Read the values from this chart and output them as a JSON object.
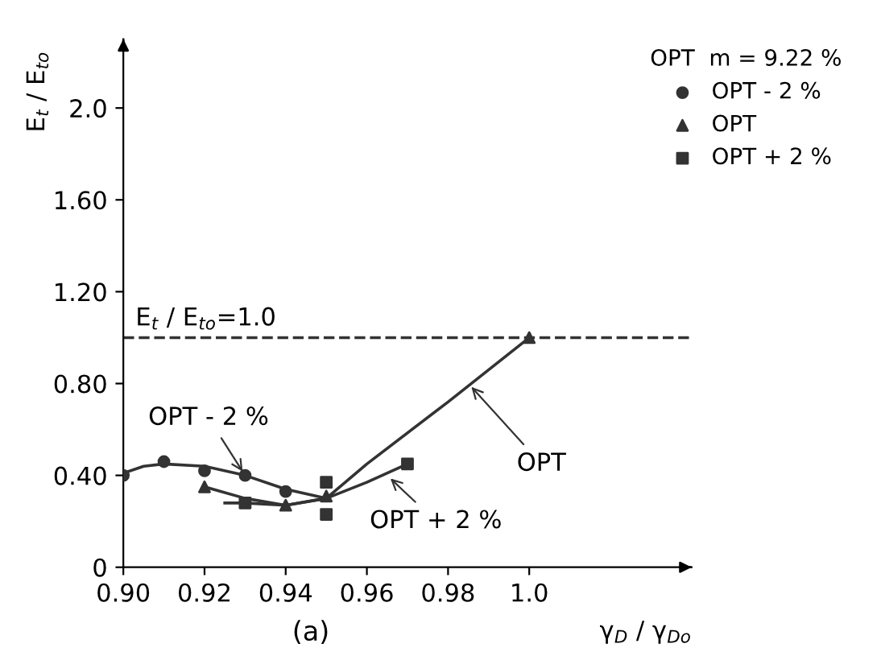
{
  "chart_data": {
    "type": "scatter",
    "xlabel": "γ$_{D}$ / γ$_{Do}$",
    "ylabel": "E$_{t}$ / E$_{to}$",
    "legend_title": "OPT  m = 9.22 %",
    "xlim": [
      0.9,
      1.04
    ],
    "ylim": [
      0,
      2.3
    ],
    "xticks": [
      {
        "value": 0.9,
        "label": "0.90"
      },
      0.92,
      0.94,
      0.96,
      0.98,
      {
        "value": 1.0,
        "label": "1.0"
      }
    ],
    "yticks": [
      0,
      {
        "value": 0.4,
        "label": "0.40"
      },
      {
        "value": 0.8,
        "label": "0.80"
      },
      {
        "value": 1.2,
        "label": "1.20"
      },
      {
        "value": 1.6,
        "label": "1.60"
      },
      {
        "value": 2.0,
        "label": "2.0"
      }
    ],
    "grid": false,
    "legend": "top right",
    "series": [
      {
        "name": "OPT - 2 %",
        "marker": "circle",
        "color": "#333333",
        "x": [
          0.9,
          0.91,
          0.92,
          0.93,
          0.94
        ],
        "values": [
          0.4,
          0.46,
          0.42,
          0.4,
          0.33
        ]
      },
      {
        "name": "OPT",
        "marker": "triangle",
        "color": "#333333",
        "x": [
          0.92,
          0.94,
          0.95,
          1.0
        ],
        "values": [
          0.35,
          0.27,
          0.31,
          1.0
        ]
      },
      {
        "name": "OPT + 2 %",
        "marker": "square",
        "color": "#333333",
        "x": [
          0.93,
          0.95,
          0.95,
          0.97
        ],
        "values": [
          0.28,
          0.37,
          0.23,
          0.45
        ]
      },
      {
        "type": "line",
        "marker": "none",
        "color": "#333333",
        "x": [
          0.9,
          0.905,
          0.91,
          0.92,
          0.93,
          0.94,
          0.95
        ],
        "values": [
          0.41,
          0.44,
          0.45,
          0.44,
          0.4,
          0.34,
          0.3
        ]
      },
      {
        "type": "line",
        "marker": "none",
        "color": "#333333",
        "x": [
          0.92,
          0.93,
          0.94,
          0.95,
          0.96,
          0.98,
          1.0
        ],
        "values": [
          0.35,
          0.3,
          0.27,
          0.3,
          0.45,
          0.72,
          1.0
        ]
      },
      {
        "type": "line",
        "marker": "none",
        "color": "#333333",
        "x": [
          0.925,
          0.93,
          0.94,
          0.95,
          0.96,
          0.97
        ],
        "values": [
          0.28,
          0.28,
          0.27,
          0.3,
          0.37,
          0.45
        ]
      }
    ],
    "ref_lines": [
      {
        "axis": "y",
        "value": 1.0,
        "label": "E$_{t}$ / E$_{to}$=1.0",
        "line_style": "dashed",
        "color": "#333333"
      }
    ],
    "annotations": [
      {
        "text": "OPT - 2 %",
        "x": 0.93,
        "y": 0.4
      },
      {
        "text": "OPT",
        "x": 0.985,
        "y": 0.8
      },
      {
        "text": "OPT + 2 %",
        "x": 0.965,
        "y": 0.4
      },
      "(a)"
    ]
  }
}
